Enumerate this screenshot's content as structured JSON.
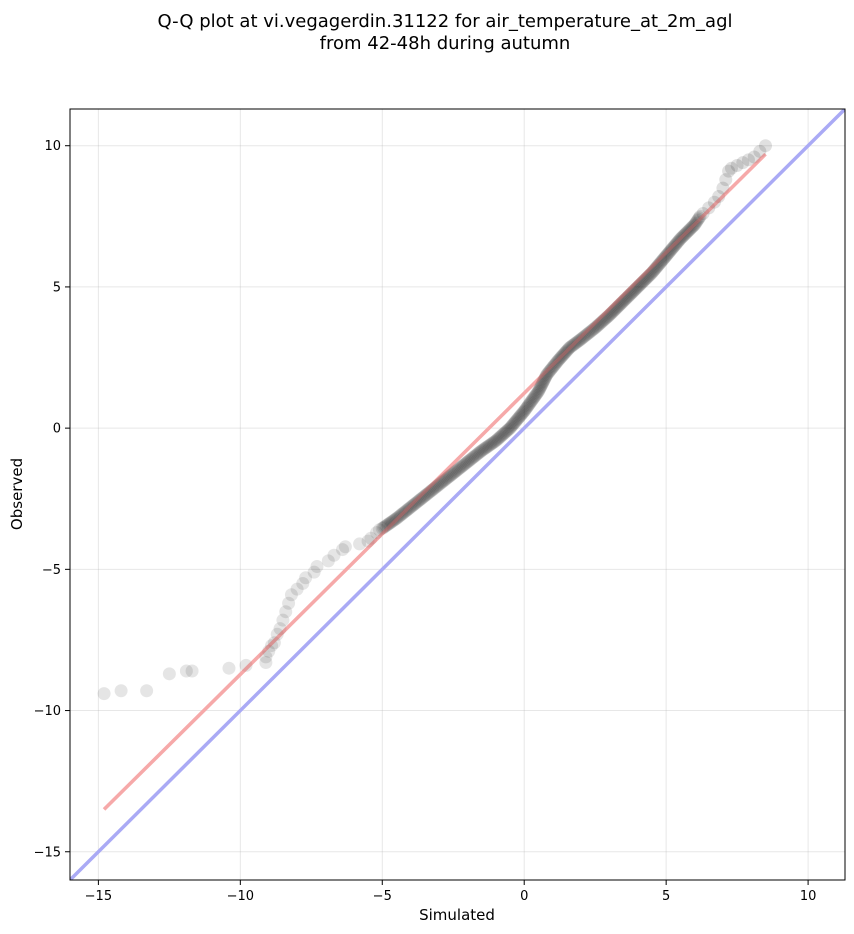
{
  "chart_data": {
    "type": "scatter",
    "title_lines": [
      "Q-Q plot at vi.vegagerdin.31122 for air_temperature_at_2m_agl",
      "from 42-48h during autumn"
    ],
    "xlabel": "Simulated",
    "ylabel": "Observed",
    "xlim": [
      -16.0,
      11.3
    ],
    "ylim": [
      -16.0,
      11.3
    ],
    "xticks": [
      -15,
      -10,
      -5,
      0,
      5,
      10
    ],
    "yticks": [
      -15,
      -10,
      -5,
      0,
      5,
      10
    ],
    "xtick_labels": [
      "−15",
      "−10",
      "−5",
      "0",
      "5",
      "10"
    ],
    "ytick_labels": [
      "−15",
      "−10",
      "−5",
      "0",
      "5",
      "10"
    ],
    "grid": true,
    "reference_line": {
      "from": [
        -16.0,
        -16.0
      ],
      "to": [
        11.3,
        11.3
      ],
      "color": "#aaaaf5"
    },
    "fit_line": {
      "from": [
        -14.8,
        -13.5
      ],
      "to": [
        8.5,
        9.7
      ],
      "color": "#f6a9a9"
    },
    "point_color": "#000000",
    "tail_points": [
      [
        -14.8,
        -9.4
      ],
      [
        -14.2,
        -9.3
      ],
      [
        -13.3,
        -9.3
      ],
      [
        -12.5,
        -8.7
      ],
      [
        -11.9,
        -8.6
      ],
      [
        -11.7,
        -8.6
      ],
      [
        -10.4,
        -8.5
      ],
      [
        -9.8,
        -8.4
      ],
      [
        -9.1,
        -8.3
      ],
      [
        -9.1,
        -8.1
      ],
      [
        -9.0,
        -7.9
      ],
      [
        -8.9,
        -7.7
      ],
      [
        -8.8,
        -7.6
      ],
      [
        -8.7,
        -7.3
      ],
      [
        -8.6,
        -7.1
      ],
      [
        -8.5,
        -6.8
      ],
      [
        -8.4,
        -6.5
      ],
      [
        -8.3,
        -6.2
      ],
      [
        -8.2,
        -5.9
      ],
      [
        -8.0,
        -5.7
      ],
      [
        -7.8,
        -5.5
      ],
      [
        -7.7,
        -5.3
      ],
      [
        -7.4,
        -5.1
      ],
      [
        -7.3,
        -4.9
      ],
      [
        -6.9,
        -4.7
      ],
      [
        -6.7,
        -4.5
      ],
      [
        -6.4,
        -4.3
      ],
      [
        -6.3,
        -4.2
      ],
      [
        -5.8,
        -4.1
      ],
      [
        -5.5,
        -4.0
      ],
      [
        -5.4,
        -3.9
      ],
      [
        -5.2,
        -3.7
      ],
      [
        -5.1,
        -3.6
      ]
    ],
    "dense_points": [
      [
        -5.0,
        -3.55
      ],
      [
        -4.5,
        -3.2
      ],
      [
        -4.0,
        -2.8
      ],
      [
        -3.5,
        -2.4
      ],
      [
        -3.0,
        -2.0
      ],
      [
        -2.5,
        -1.6
      ],
      [
        -2.0,
        -1.2
      ],
      [
        -1.5,
        -0.8
      ],
      [
        -1.0,
        -0.45
      ],
      [
        -0.5,
        0.0
      ],
      [
        0.0,
        0.6
      ],
      [
        0.5,
        1.3
      ],
      [
        0.8,
        1.9
      ],
      [
        1.2,
        2.4
      ],
      [
        1.6,
        2.85
      ],
      [
        2.0,
        3.15
      ],
      [
        2.5,
        3.55
      ],
      [
        3.0,
        4.0
      ],
      [
        3.5,
        4.5
      ],
      [
        4.0,
        5.0
      ],
      [
        4.5,
        5.5
      ],
      [
        5.0,
        6.1
      ],
      [
        5.5,
        6.7
      ],
      [
        6.0,
        7.2
      ],
      [
        6.2,
        7.5
      ]
    ],
    "upper_tail_points": [
      [
        6.3,
        7.6
      ],
      [
        6.5,
        7.8
      ],
      [
        6.7,
        8.0
      ],
      [
        6.85,
        8.2
      ],
      [
        7.0,
        8.5
      ],
      [
        7.1,
        8.8
      ],
      [
        7.2,
        9.1
      ],
      [
        7.3,
        9.2
      ],
      [
        7.5,
        9.3
      ],
      [
        7.7,
        9.4
      ],
      [
        7.9,
        9.5
      ],
      [
        8.1,
        9.6
      ],
      [
        8.3,
        9.8
      ],
      [
        8.5,
        10.0
      ]
    ]
  }
}
